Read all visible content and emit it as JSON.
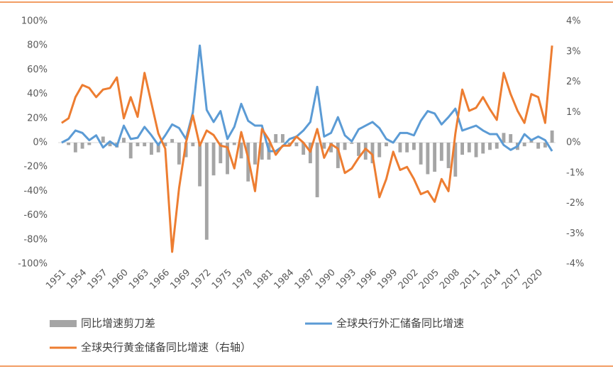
{
  "chart_data": {
    "type": "combo",
    "categories": [
      "1951",
      null,
      null,
      "1954",
      null,
      null,
      "1957",
      null,
      null,
      "1960",
      null,
      null,
      "1963",
      null,
      null,
      "1966",
      null,
      null,
      "1969",
      null,
      null,
      "1972",
      null,
      null,
      "1975",
      null,
      null,
      "1978",
      null,
      null,
      "1981",
      null,
      null,
      "1984",
      null,
      null,
      "1987",
      null,
      null,
      "1990",
      null,
      null,
      "1993",
      null,
      null,
      "1996",
      null,
      null,
      "1999",
      null,
      null,
      "2002",
      null,
      null,
      "2005",
      null,
      null,
      "2008",
      null,
      null,
      "2011",
      null,
      null,
      "2014",
      null,
      null,
      "2017",
      null,
      null,
      "2020",
      null,
      null
    ],
    "series": [
      {
        "name": "同比增速剪刀差",
        "type": "bar",
        "color": "#a5a5a5",
        "values": [
          0,
          -2,
          -8,
          -5,
          -2,
          0,
          5,
          -3,
          -4,
          4,
          -13,
          -3,
          -3,
          -10,
          -8,
          -3,
          3,
          -18,
          -12,
          -3,
          -36,
          -80,
          -27,
          -17,
          -26,
          -2,
          -13,
          -32,
          -18,
          -14,
          -14,
          7,
          7,
          -3,
          -3,
          -10,
          -17,
          -45,
          -5,
          -8,
          -21,
          -6,
          -1,
          -11,
          -14,
          -17,
          -12,
          -3,
          0,
          -8,
          -8,
          -6,
          -18,
          -26,
          -24,
          -15,
          -21,
          -28,
          -10,
          -8,
          -12,
          -9,
          -6,
          -5,
          8,
          7,
          -6,
          -3,
          2,
          -5,
          -4,
          10
        ]
      },
      {
        "name": "全球央行外汇储备同比增速",
        "type": "line",
        "color": "#5b9bd5",
        "values": [
          0,
          3,
          10,
          8,
          2,
          6,
          -4,
          1,
          -3,
          14,
          3,
          4,
          13,
          6,
          -2,
          6,
          15,
          12,
          3,
          25,
          80,
          27,
          17,
          26,
          3,
          13,
          32,
          18,
          14,
          14,
          -7,
          -7,
          -3,
          3,
          5,
          10,
          17,
          46,
          5,
          8,
          21,
          6,
          1,
          11,
          14,
          17,
          12,
          3,
          0,
          8,
          8,
          6,
          18,
          26,
          24,
          15,
          21,
          28,
          10,
          12,
          14,
          10,
          7,
          7,
          -2,
          -6,
          -3,
          7,
          2,
          5,
          2,
          -7
        ]
      },
      {
        "name": "全球央行黄金储备同比增速（右轴）",
        "type": "line",
        "axis": "y2",
        "color": "#ed7d31",
        "values": [
          0.65,
          0.8,
          1.5,
          1.9,
          1.8,
          1.5,
          1.75,
          1.8,
          2.15,
          0.8,
          1.5,
          0.85,
          2.3,
          1.3,
          0.3,
          -0.2,
          -3.6,
          -1.5,
          0.0,
          0.9,
          -0.1,
          0.4,
          0.25,
          -0.1,
          -0.15,
          -0.85,
          0.35,
          -0.5,
          -1.6,
          0.45,
          0.1,
          -0.4,
          -0.1,
          -0.1,
          0.2,
          0.0,
          -0.3,
          0.45,
          -0.5,
          -0.05,
          -0.2,
          -1.0,
          -0.85,
          -0.5,
          -0.2,
          -0.4,
          -1.8,
          -1.2,
          -0.3,
          -0.9,
          -0.8,
          -1.2,
          -1.7,
          -1.6,
          -1.95,
          -1.2,
          -1.6,
          0.3,
          1.75,
          1.05,
          1.15,
          1.5,
          1.1,
          0.75,
          2.3,
          1.6,
          1.05,
          0.65,
          1.6,
          1.5,
          0.65,
          3.2
        ]
      }
    ],
    "ylim": [
      -100,
      100
    ],
    "yticks": [
      {
        "value": -100,
        "label": "-100%"
      },
      {
        "value": -80,
        "label": "-80%"
      },
      {
        "value": -60,
        "label": "-60%"
      },
      {
        "value": -40,
        "label": "-40%"
      },
      {
        "value": -20,
        "label": "-20%"
      },
      {
        "value": 0,
        "label": "0%"
      },
      {
        "value": 20,
        "label": "20%"
      },
      {
        "value": 40,
        "label": "40%"
      },
      {
        "value": 60,
        "label": "60%"
      },
      {
        "value": 80,
        "label": "80%"
      },
      {
        "value": 100,
        "label": "100%"
      }
    ],
    "y2lim": [
      -4,
      4
    ],
    "y2ticks": [
      {
        "value": -4,
        "label": "-4%"
      },
      {
        "value": -3,
        "label": "-3%"
      },
      {
        "value": -2,
        "label": "-2%"
      },
      {
        "value": -1,
        "label": "-1%"
      },
      {
        "value": 0,
        "label": "0%"
      },
      {
        "value": 1,
        "label": "1%"
      },
      {
        "value": 2,
        "label": "2%"
      },
      {
        "value": 3,
        "label": "3%"
      },
      {
        "value": 4,
        "label": "4%"
      }
    ]
  }
}
